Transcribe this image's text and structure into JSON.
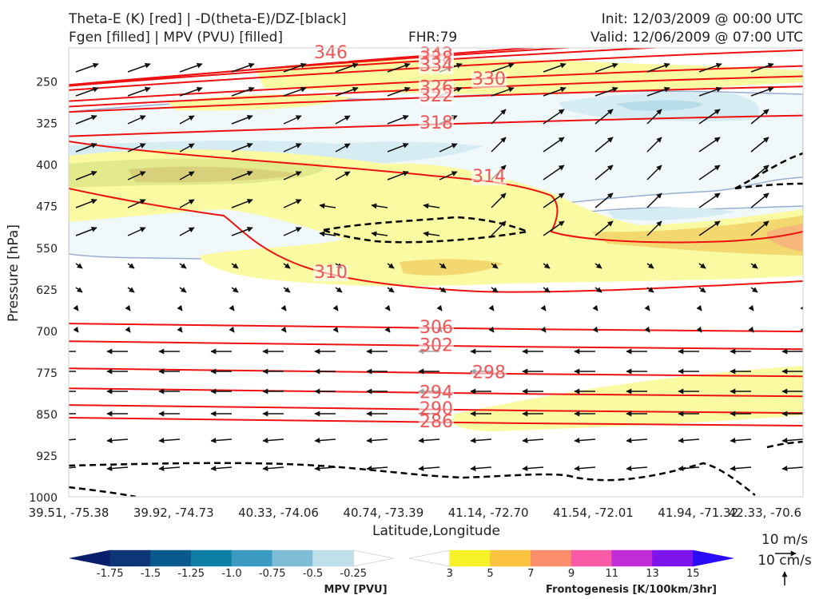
{
  "header": {
    "left_line1": "Theta-E (K) [red] | -D(theta-E)/DZ-[black]",
    "left_line2": "Fgen [filled] | MPV (PVU) [filled]",
    "fhr": "FHR:79",
    "init": "Init: 12/03/2009 @ 00:00 UTC",
    "valid": "Valid: 12/06/2009 @ 07:00 UTC"
  },
  "chart_data": {
    "type": "cross-section",
    "xlabel": "Latitude,Longitude",
    "ylabel": "Pressure [hPa]",
    "ylim": [
      1000,
      190
    ],
    "y_ticks": [
      "250",
      "325",
      "400",
      "475",
      "550",
      "625",
      "700",
      "775",
      "850",
      "925",
      "1000"
    ],
    "x_ticks": [
      "39.51, -75.38",
      "39.92, -74.73",
      "40.33, -74.06",
      "40.74, -73.39",
      "41.14, -72.70",
      "41.54, -72.01",
      "41.94, -71.32",
      "42.33, -70.6"
    ],
    "theta_e_contours": [
      {
        "label": "346",
        "pressure": 200
      },
      {
        "label": "342",
        "pressure": 203
      },
      {
        "label": "338",
        "pressure": 210
      },
      {
        "label": "334",
        "pressure": 223
      },
      {
        "label": "330",
        "pressure": 248
      },
      {
        "label": "326",
        "pressure": 263
      },
      {
        "label": "322",
        "pressure": 278
      },
      {
        "label": "318",
        "pressure": 327
      },
      {
        "label": "314",
        "pressure": 445
      },
      {
        "label": "310",
        "pressure": 610
      },
      {
        "label": "306",
        "pressure": 696
      },
      {
        "label": "302",
        "pressure": 728
      },
      {
        "label": "298",
        "pressure": 777
      },
      {
        "label": "294",
        "pressure": 813
      },
      {
        "label": "290",
        "pressure": 843
      },
      {
        "label": "286",
        "pressure": 866
      }
    ],
    "mpv_colorbar": {
      "label": "MPV [PVU]",
      "ticks": [
        "-1.75",
        "-1.5",
        "-1.25",
        "-1.0",
        "-0.75",
        "-0.5",
        "-0.25"
      ],
      "colors": [
        "#0a1f6b",
        "#0e3577",
        "#0b5a8d",
        "#107fa4",
        "#3c9bc2",
        "#7fbcd6",
        "#bfe0ea",
        "#ffffff"
      ]
    },
    "fgen_colorbar": {
      "label": "Frontogenesis [K/100km/3hr]",
      "ticks": [
        "3",
        "5",
        "7",
        "9",
        "11",
        "13",
        "15"
      ],
      "colors": [
        "#ffffff",
        "#f6f228",
        "#fbc33f",
        "#fb8e6a",
        "#f95aa6",
        "#c02cd6",
        "#7e14ec",
        "#2a0cf8"
      ]
    },
    "wind_reference": {
      "horizontal": "10 m/s",
      "vertical": "10 cm/s"
    }
  }
}
